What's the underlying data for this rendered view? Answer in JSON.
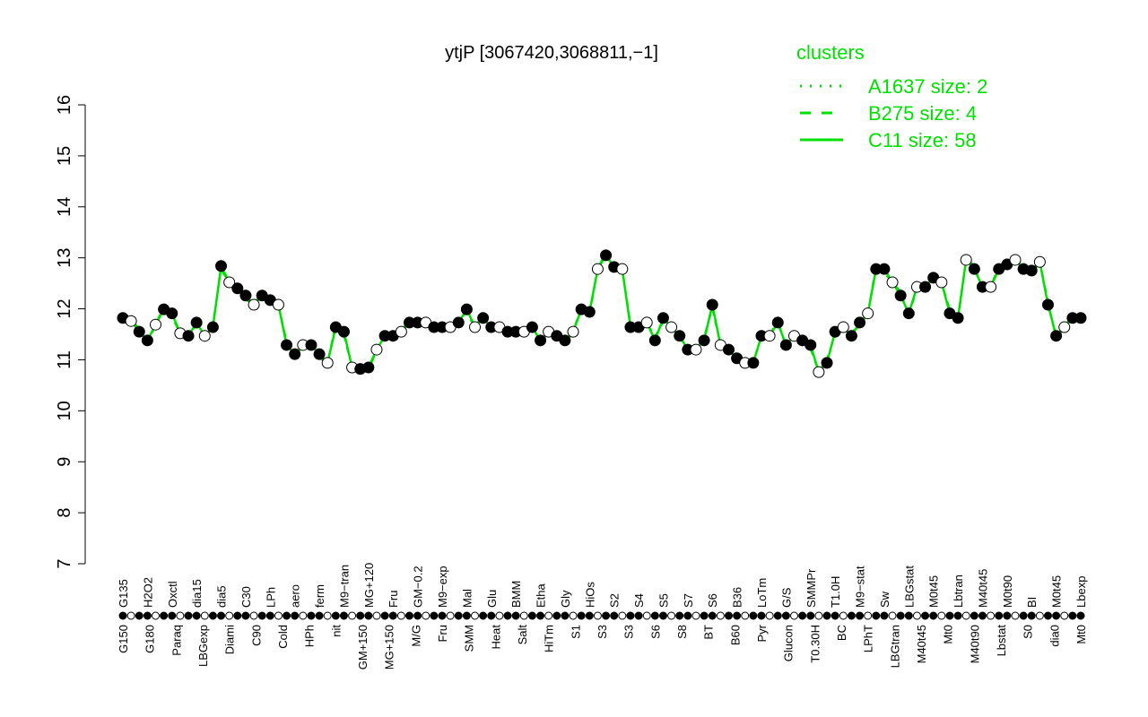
{
  "chart_data": {
    "type": "line",
    "title": "ytjP [3067420,3068811,−1]",
    "xlabel": "",
    "ylabel": "",
    "ylim": [
      7,
      16
    ],
    "yticks": [
      7,
      8,
      9,
      10,
      11,
      12,
      13,
      14,
      15,
      16
    ],
    "grid": false,
    "legend": {
      "title": "clusters",
      "placement": "top-right",
      "entries": [
        {
          "label": "A1637 size: 2",
          "style": "dotted"
        },
        {
          "label": "B275 size: 4",
          "style": "dashed"
        },
        {
          "label": "C11 size: 58",
          "style": "solid"
        }
      ]
    },
    "colors": {
      "line": "#00e000",
      "legend_text": "#00e000",
      "points": "#000000"
    },
    "x_tick_labels_top": [
      "G135",
      "H2O2",
      "Oxctl",
      "dia15",
      "dia5",
      "C30",
      "LPh",
      "aero",
      "ferm",
      "M9−tran",
      "MG+120",
      "Fru",
      "GM−0.2",
      "M9−exp",
      "Mal",
      "Glu",
      "BMM",
      "Etha",
      "Gly",
      "HiOs",
      "S2",
      "S4",
      "S5",
      "S7",
      "S6",
      "B36",
      "LoTm",
      "G/S",
      "SMMPr",
      "T1.0H",
      "M9−stat",
      "Sw",
      "LBGstat",
      "M0t45",
      "Lbtran",
      "M40t45",
      "M0t90",
      "BI",
      "M0t45",
      "Lbexp"
    ],
    "x_tick_labels_bottom": [
      "G150",
      "G180",
      "Paraq",
      "LBGexp",
      "Diami",
      "C90",
      "Cold",
      "HPh",
      "nit",
      "GM+150",
      "MG+150",
      "M/G",
      "Fru",
      "SMM",
      "Heat",
      "Salt",
      "HiTm",
      "S1",
      "S3",
      "S3",
      "S6",
      "S8",
      "BT",
      "B60",
      "Pyr",
      "Glucon",
      "T0.30H",
      "BC",
      "LPhT",
      "LBGtran",
      "M40t45",
      "Mt0",
      "M40t90",
      "Lbstat",
      "S0",
      "dia0",
      "Mt0"
    ],
    "values": [
      11.82,
      11.76,
      11.55,
      11.38,
      11.69,
      11.99,
      11.91,
      11.52,
      11.47,
      11.73,
      11.47,
      11.64,
      12.84,
      12.52,
      12.4,
      12.26,
      12.08,
      12.26,
      12.17,
      12.08,
      11.29,
      11.11,
      11.29,
      11.29,
      11.11,
      10.94,
      11.64,
      11.55,
      10.85,
      10.82,
      10.85,
      11.2,
      11.47,
      11.47,
      11.55,
      11.73,
      11.73,
      11.73,
      11.64,
      11.64,
      11.64,
      11.73,
      11.99,
      11.64,
      11.82,
      11.64,
      11.64,
      11.55,
      11.55,
      11.55,
      11.64,
      11.38,
      11.55,
      11.47,
      11.38,
      11.55,
      11.99,
      11.94,
      12.78,
      13.05,
      12.82,
      12.78,
      11.64,
      11.64,
      11.73,
      11.38,
      11.82,
      11.64,
      11.47,
      11.2,
      11.2,
      11.38,
      12.08,
      11.29,
      11.2,
      11.03,
      10.94,
      10.94,
      11.47,
      11.47,
      11.73,
      11.29,
      11.47,
      11.38,
      11.29,
      10.76,
      10.94,
      11.55,
      11.64,
      11.47,
      11.73,
      11.91,
      12.78,
      12.78,
      12.52,
      12.26,
      11.91,
      12.43,
      12.43,
      12.61,
      12.52,
      11.91,
      11.82,
      12.96,
      12.78,
      12.43,
      12.43,
      12.78,
      12.87,
      12.96,
      12.78,
      12.75,
      12.92,
      12.08,
      11.47,
      11.64,
      11.82,
      11.82
    ]
  }
}
